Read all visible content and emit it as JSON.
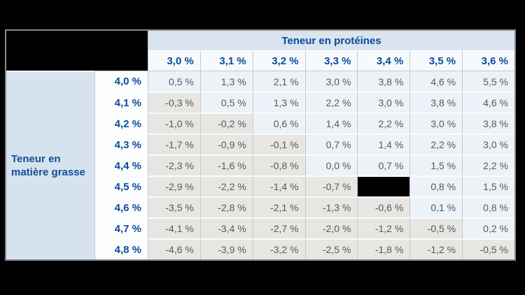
{
  "chart_data": {
    "type": "table",
    "title": "",
    "col_axis_label": "Teneur en protéines",
    "row_axis_label": "Teneur en matière grasse",
    "columns": [
      "3,0 %",
      "3,1 %",
      "3,2 %",
      "3,3 %",
      "3,4 %",
      "3,5 %",
      "3,6 %"
    ],
    "rows": [
      "4,0 %",
      "4,1 %",
      "4,2 %",
      "4,3 %",
      "4,4 %",
      "4,5 %",
      "4,6 %",
      "4,7 %",
      "4,8 %"
    ],
    "values": [
      [
        "0,5 %",
        "1,3 %",
        "2,1 %",
        "3,0 %",
        "3,8 %",
        "4,6 %",
        "5,5 %"
      ],
      [
        "-0,3 %",
        "0,5 %",
        "1,3 %",
        "2,2 %",
        "3,0 %",
        "3,8 %",
        "4,6 %"
      ],
      [
        "-1,0 %",
        "-0,2 %",
        "0,6 %",
        "1,4 %",
        "2,2 %",
        "3,0 %",
        "3,8 %"
      ],
      [
        "-1,7 %",
        "-0,9 %",
        "-0,1 %",
        "0,7 %",
        "1,4 %",
        "2,2 %",
        "3,0 %"
      ],
      [
        "-2,3 %",
        "-1,6 %",
        "-0,8 %",
        "0,0 %",
        "0,7 %",
        "1,5 %",
        "2,2 %"
      ],
      [
        "-2,9 %",
        "-2,2 %",
        "-1,4 %",
        "-0,7 %",
        null,
        "0,8 %",
        "1,5 %"
      ],
      [
        "-3,5 %",
        "-2,8 %",
        "-2,1 %",
        "-1,3 %",
        "-0,6 %",
        "0,1 %",
        "0,8 %"
      ],
      [
        "-4,1 %",
        "-3,4 %",
        "-2,7 %",
        "-2,0 %",
        "-1,2 %",
        "-0,5 %",
        "0,2 %"
      ],
      [
        "-4,6 %",
        "-3,9 %",
        "-3,2 %",
        "-2,5 %",
        "-1,8 %",
        "-1,2 %",
        "-0,5 %"
      ]
    ],
    "redacted": {
      "top_left_header_block": true,
      "cells": [
        {
          "row_index": 5,
          "col_index": 4
        }
      ]
    },
    "layout_hints": {
      "positive_cells": "light blue",
      "negative_cells": "light gray",
      "decimal_separator": "comma"
    }
  },
  "colors": {
    "page_background": "#000000",
    "table_border": "#85888e",
    "accent_blue_text": "#0b4a9a",
    "protein_band_background": "#d9e4ee",
    "fat_label_background": "#d6e3ee",
    "column_header_background": "#f7fafc",
    "row_header_background": "#fcfdfe",
    "positive_cell_background": "#ecf2f7",
    "negative_cell_background": "#e8e6e3",
    "data_text": "#58595b",
    "redacted_block": "#000000"
  }
}
